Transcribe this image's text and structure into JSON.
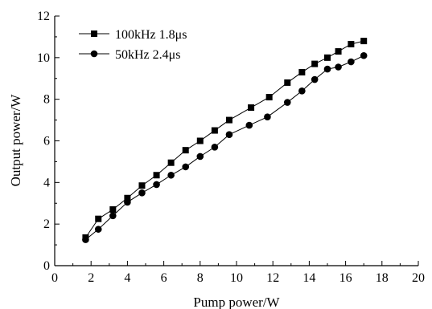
{
  "chart_data": {
    "type": "line",
    "xlabel": "Pump power/W",
    "ylabel": "Output power/W",
    "xlim": [
      0,
      20
    ],
    "ylim": [
      0,
      12
    ],
    "xticks": [
      0,
      2,
      4,
      6,
      8,
      10,
      12,
      14,
      16,
      18,
      20
    ],
    "yticks": [
      0,
      2,
      4,
      6,
      8,
      10,
      12
    ],
    "grid": false,
    "legend_position": "top-left",
    "series": [
      {
        "name": "100kHz 1.8μs",
        "marker": "square",
        "color": "#000000",
        "x": [
          1.7,
          2.4,
          3.2,
          4.0,
          4.8,
          5.6,
          6.4,
          7.2,
          8.0,
          8.8,
          9.6,
          10.8,
          11.8,
          12.8,
          13.6,
          14.3,
          15.0,
          15.6,
          16.3,
          17.0
        ],
        "y": [
          1.35,
          2.25,
          2.7,
          3.25,
          3.85,
          4.35,
          4.95,
          5.55,
          6.0,
          6.5,
          7.0,
          7.6,
          8.1,
          8.8,
          9.3,
          9.7,
          10.0,
          10.3,
          10.65,
          10.8
        ]
      },
      {
        "name": "50kHz 2.4μs",
        "marker": "circle",
        "color": "#000000",
        "x": [
          1.7,
          2.4,
          3.2,
          4.0,
          4.8,
          5.6,
          6.4,
          7.2,
          8.0,
          8.8,
          9.6,
          10.7,
          11.7,
          12.8,
          13.6,
          14.3,
          15.0,
          15.6,
          16.3,
          17.0
        ],
        "y": [
          1.25,
          1.75,
          2.4,
          3.05,
          3.5,
          3.9,
          4.35,
          4.75,
          5.25,
          5.7,
          6.3,
          6.75,
          7.15,
          7.85,
          8.4,
          8.95,
          9.45,
          9.55,
          9.8,
          10.1
        ]
      }
    ]
  }
}
